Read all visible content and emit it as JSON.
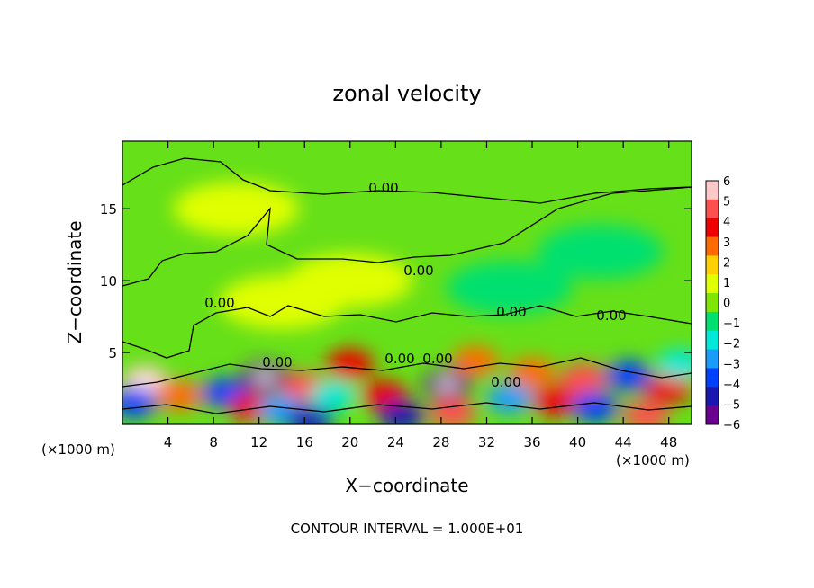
{
  "chart_data": {
    "type": "heatmap",
    "title": "zonal velocity",
    "xlabel": "X−coordinate",
    "ylabel": "Z−coordinate",
    "x_unit": "(×1000 m)",
    "x_unit_right": "(×1000 m)",
    "x_ticks": [
      "4",
      "8",
      "12",
      "16",
      "20",
      "24",
      "28",
      "32",
      "36",
      "40",
      "44",
      "48"
    ],
    "x_tick_values": [
      4,
      8,
      12,
      16,
      20,
      24,
      28,
      32,
      36,
      40,
      44,
      48
    ],
    "xlim": [
      0,
      50
    ],
    "y_ticks": [
      "5",
      "10",
      "15"
    ],
    "y_tick_values": [
      5,
      10,
      15
    ],
    "ylim": [
      0,
      19.7
    ],
    "colorbar": {
      "labels": [
        "6",
        "5",
        "4",
        "3",
        "2",
        "1",
        "0",
        "−1",
        "−2",
        "−3",
        "−4",
        "−5",
        "−6"
      ],
      "values": [
        6,
        5,
        4,
        3,
        2,
        1,
        0,
        -1,
        -2,
        -3,
        -4,
        -5,
        -6
      ],
      "colors": [
        "#ffc8c8",
        "#ff5050",
        "#ee0000",
        "#ff6a00",
        "#ffd000",
        "#e0ff00",
        "#7ee600",
        "#00e070",
        "#00e8d8",
        "#1a9cff",
        "#0040ff",
        "#1818b0",
        "#6a0090"
      ]
    },
    "contour_label": "0.00",
    "contour_interval_text": "CONTOUR INTERVAL = 1.000E+01",
    "features": [
      {
        "x": 2,
        "z": 3,
        "v": 5.5
      },
      {
        "x": 1,
        "z": 1.5,
        "v": -4
      },
      {
        "x": 5,
        "z": 2,
        "v": 3
      },
      {
        "x": 9,
        "z": 2.2,
        "v": -4
      },
      {
        "x": 12.5,
        "z": 3.3,
        "v": -6
      },
      {
        "x": 11.5,
        "z": 1.2,
        "v": 4
      },
      {
        "x": 16,
        "z": 2.6,
        "v": 5
      },
      {
        "x": 14,
        "z": 1.0,
        "v": -3
      },
      {
        "x": 16.5,
        "z": 0.3,
        "v": -5
      },
      {
        "x": 18.5,
        "z": 2.0,
        "v": -2.5
      },
      {
        "x": 20,
        "z": 4.2,
        "v": 3.5
      },
      {
        "x": 23,
        "z": 2.0,
        "v": 4
      },
      {
        "x": 24.5,
        "z": 0.6,
        "v": -5
      },
      {
        "x": 28.5,
        "z": 2.8,
        "v": -6
      },
      {
        "x": 29,
        "z": 0.8,
        "v": 5
      },
      {
        "x": 31,
        "z": 4.4,
        "v": 2.5
      },
      {
        "x": 34,
        "z": 1.8,
        "v": -3.5
      },
      {
        "x": 36,
        "z": 3.6,
        "v": 2.5
      },
      {
        "x": 38,
        "z": 1.6,
        "v": 3.5
      },
      {
        "x": 40.5,
        "z": 3.2,
        "v": 4.5
      },
      {
        "x": 41.5,
        "z": 1.2,
        "v": -4
      },
      {
        "x": 44.5,
        "z": 3.4,
        "v": -4
      },
      {
        "x": 46,
        "z": 0.6,
        "v": 5
      },
      {
        "x": 48,
        "z": 2.5,
        "v": 4
      },
      {
        "x": 49,
        "z": 4.2,
        "v": -2
      },
      {
        "x": 20,
        "z": 10,
        "v": 1
      },
      {
        "x": 14,
        "z": 8.5,
        "v": 1.2
      },
      {
        "x": 34,
        "z": 9.5,
        "v": -1
      },
      {
        "x": 42,
        "z": 12,
        "v": -0.6
      },
      {
        "x": 10,
        "z": 15,
        "v": 0.6
      }
    ]
  }
}
